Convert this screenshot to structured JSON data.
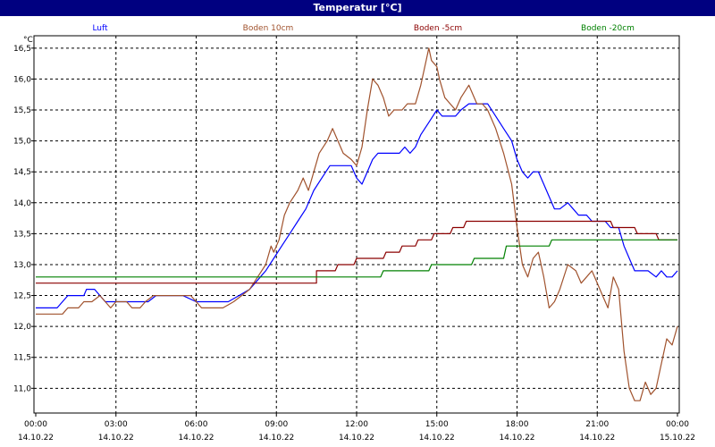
{
  "window": {
    "title": "Temperatur [°C]"
  },
  "chart_data": {
    "type": "line",
    "ylabel": "°C",
    "ylim": [
      10.6,
      16.7
    ],
    "xlim": [
      "14.10.22 00:00",
      "15.10.22 00:00"
    ],
    "grid": true,
    "legend_position": "top",
    "y_ticks": [
      "11,0",
      "11,5",
      "12,0",
      "12,5",
      "13,0",
      "13,5",
      "14,0",
      "14,5",
      "15,0",
      "15,5",
      "16,0",
      "16,5"
    ],
    "y_tick_values": [
      11.0,
      11.5,
      12.0,
      12.5,
      13.0,
      13.5,
      14.0,
      14.5,
      15.0,
      15.5,
      16.0,
      16.5
    ],
    "x_ticks": [
      {
        "time": "00:00",
        "date": "14.10.22"
      },
      {
        "time": "03:00",
        "date": "14.10.22"
      },
      {
        "time": "06:00",
        "date": "14.10.22"
      },
      {
        "time": "09:00",
        "date": "14.10.22"
      },
      {
        "time": "12:00",
        "date": "14.10.22"
      },
      {
        "time": "15:00",
        "date": "14.10.22"
      },
      {
        "time": "18:00",
        "date": "14.10.22"
      },
      {
        "time": "21:00",
        "date": "14.10.22"
      },
      {
        "time": "00:00",
        "date": "15.10.22"
      }
    ],
    "series": [
      {
        "name": "Luft",
        "color": "#0000ff",
        "points": [
          [
            0.0,
            12.3
          ],
          [
            0.8,
            12.3
          ],
          [
            1.0,
            12.4
          ],
          [
            1.2,
            12.5
          ],
          [
            1.8,
            12.5
          ],
          [
            1.9,
            12.6
          ],
          [
            2.2,
            12.6
          ],
          [
            2.4,
            12.5
          ],
          [
            2.6,
            12.4
          ],
          [
            4.2,
            12.4
          ],
          [
            4.5,
            12.5
          ],
          [
            5.5,
            12.5
          ],
          [
            6.0,
            12.4
          ],
          [
            7.2,
            12.4
          ],
          [
            7.6,
            12.5
          ],
          [
            8.0,
            12.6
          ],
          [
            8.4,
            12.8
          ],
          [
            8.6,
            12.9
          ],
          [
            8.9,
            13.1
          ],
          [
            9.2,
            13.3
          ],
          [
            9.5,
            13.5
          ],
          [
            9.8,
            13.7
          ],
          [
            10.1,
            13.9
          ],
          [
            10.4,
            14.2
          ],
          [
            10.7,
            14.4
          ],
          [
            11.0,
            14.6
          ],
          [
            11.8,
            14.6
          ],
          [
            12.0,
            14.4
          ],
          [
            12.2,
            14.3
          ],
          [
            12.4,
            14.5
          ],
          [
            12.6,
            14.7
          ],
          [
            12.8,
            14.8
          ],
          [
            13.6,
            14.8
          ],
          [
            13.8,
            14.9
          ],
          [
            14.0,
            14.8
          ],
          [
            14.2,
            14.9
          ],
          [
            14.4,
            15.1
          ],
          [
            14.7,
            15.3
          ],
          [
            15.0,
            15.5
          ],
          [
            15.2,
            15.4
          ],
          [
            15.7,
            15.4
          ],
          [
            15.9,
            15.5
          ],
          [
            16.2,
            15.6
          ],
          [
            16.9,
            15.6
          ],
          [
            17.2,
            15.4
          ],
          [
            17.5,
            15.2
          ],
          [
            17.8,
            15.0
          ],
          [
            18.0,
            14.7
          ],
          [
            18.2,
            14.5
          ],
          [
            18.4,
            14.4
          ],
          [
            18.6,
            14.5
          ],
          [
            18.8,
            14.5
          ],
          [
            19.0,
            14.3
          ],
          [
            19.2,
            14.1
          ],
          [
            19.4,
            13.9
          ],
          [
            19.6,
            13.9
          ],
          [
            19.9,
            14.0
          ],
          [
            20.1,
            13.9
          ],
          [
            20.3,
            13.8
          ],
          [
            20.6,
            13.8
          ],
          [
            20.8,
            13.7
          ],
          [
            21.3,
            13.7
          ],
          [
            21.5,
            13.6
          ],
          [
            21.8,
            13.6
          ],
          [
            22.0,
            13.3
          ],
          [
            22.2,
            13.1
          ],
          [
            22.4,
            12.9
          ],
          [
            22.9,
            12.9
          ],
          [
            23.2,
            12.8
          ],
          [
            23.4,
            12.9
          ],
          [
            23.6,
            12.8
          ],
          [
            23.8,
            12.8
          ],
          [
            24.0,
            12.9
          ]
        ]
      },
      {
        "name": "Boden 10cm",
        "color": "#a0522d",
        "points": [
          [
            0.0,
            12.2
          ],
          [
            1.0,
            12.2
          ],
          [
            1.2,
            12.3
          ],
          [
            1.6,
            12.3
          ],
          [
            1.8,
            12.4
          ],
          [
            2.1,
            12.4
          ],
          [
            2.4,
            12.5
          ],
          [
            2.6,
            12.4
          ],
          [
            2.8,
            12.3
          ],
          [
            3.0,
            12.4
          ],
          [
            3.4,
            12.4
          ],
          [
            3.6,
            12.3
          ],
          [
            3.9,
            12.3
          ],
          [
            4.1,
            12.4
          ],
          [
            4.4,
            12.5
          ],
          [
            5.8,
            12.5
          ],
          [
            6.0,
            12.4
          ],
          [
            6.2,
            12.3
          ],
          [
            7.0,
            12.3
          ],
          [
            7.4,
            12.4
          ],
          [
            7.7,
            12.5
          ],
          [
            8.0,
            12.6
          ],
          [
            8.3,
            12.8
          ],
          [
            8.6,
            13.0
          ],
          [
            8.8,
            13.3
          ],
          [
            8.9,
            13.2
          ],
          [
            9.1,
            13.4
          ],
          [
            9.3,
            13.8
          ],
          [
            9.5,
            14.0
          ],
          [
            9.8,
            14.2
          ],
          [
            10.0,
            14.4
          ],
          [
            10.2,
            14.2
          ],
          [
            10.4,
            14.5
          ],
          [
            10.6,
            14.8
          ],
          [
            10.9,
            15.0
          ],
          [
            11.1,
            15.2
          ],
          [
            11.3,
            15.0
          ],
          [
            11.5,
            14.8
          ],
          [
            11.8,
            14.7
          ],
          [
            12.0,
            14.6
          ],
          [
            12.2,
            14.9
          ],
          [
            12.4,
            15.5
          ],
          [
            12.6,
            16.0
          ],
          [
            12.8,
            15.9
          ],
          [
            13.0,
            15.7
          ],
          [
            13.2,
            15.4
          ],
          [
            13.4,
            15.5
          ],
          [
            13.7,
            15.5
          ],
          [
            13.9,
            15.6
          ],
          [
            14.2,
            15.6
          ],
          [
            14.4,
            15.9
          ],
          [
            14.6,
            16.3
          ],
          [
            14.7,
            16.5
          ],
          [
            14.8,
            16.3
          ],
          [
            15.0,
            16.2
          ],
          [
            15.1,
            16.0
          ],
          [
            15.3,
            15.7
          ],
          [
            15.5,
            15.6
          ],
          [
            15.7,
            15.5
          ],
          [
            15.9,
            15.7
          ],
          [
            16.2,
            15.9
          ],
          [
            16.5,
            15.6
          ],
          [
            16.7,
            15.6
          ],
          [
            16.9,
            15.5
          ],
          [
            17.2,
            15.2
          ],
          [
            17.5,
            14.8
          ],
          [
            17.8,
            14.3
          ],
          [
            18.0,
            13.6
          ],
          [
            18.2,
            13.0
          ],
          [
            18.4,
            12.8
          ],
          [
            18.6,
            13.1
          ],
          [
            18.8,
            13.2
          ],
          [
            19.0,
            12.8
          ],
          [
            19.2,
            12.3
          ],
          [
            19.4,
            12.4
          ],
          [
            19.6,
            12.6
          ],
          [
            19.9,
            13.0
          ],
          [
            20.2,
            12.9
          ],
          [
            20.4,
            12.7
          ],
          [
            20.6,
            12.8
          ],
          [
            20.8,
            12.9
          ],
          [
            21.0,
            12.7
          ],
          [
            21.2,
            12.5
          ],
          [
            21.4,
            12.3
          ],
          [
            21.6,
            12.8
          ],
          [
            21.8,
            12.6
          ],
          [
            22.0,
            11.6
          ],
          [
            22.2,
            11.0
          ],
          [
            22.4,
            10.8
          ],
          [
            22.6,
            10.8
          ],
          [
            22.8,
            11.1
          ],
          [
            23.0,
            10.9
          ],
          [
            23.2,
            11.0
          ],
          [
            23.4,
            11.4
          ],
          [
            23.6,
            11.8
          ],
          [
            23.8,
            11.7
          ],
          [
            24.0,
            12.0
          ]
        ]
      },
      {
        "name": "Boden -5cm",
        "color": "#8b0000",
        "points": [
          [
            0.0,
            12.7
          ],
          [
            10.5,
            12.7
          ],
          [
            10.5,
            12.9
          ],
          [
            11.2,
            12.9
          ],
          [
            11.3,
            13.0
          ],
          [
            11.9,
            13.0
          ],
          [
            12.0,
            13.1
          ],
          [
            13.0,
            13.1
          ],
          [
            13.1,
            13.2
          ],
          [
            13.6,
            13.2
          ],
          [
            13.7,
            13.3
          ],
          [
            14.2,
            13.3
          ],
          [
            14.3,
            13.4
          ],
          [
            14.8,
            13.4
          ],
          [
            14.9,
            13.5
          ],
          [
            15.5,
            13.5
          ],
          [
            15.6,
            13.6
          ],
          [
            16.0,
            13.6
          ],
          [
            16.1,
            13.7
          ],
          [
            21.5,
            13.7
          ],
          [
            21.6,
            13.6
          ],
          [
            22.4,
            13.6
          ],
          [
            22.5,
            13.5
          ],
          [
            23.2,
            13.5
          ],
          [
            23.3,
            13.4
          ],
          [
            24.0,
            13.4
          ]
        ]
      },
      {
        "name": "Boden -20cm",
        "color": "#008000",
        "points": [
          [
            0.0,
            12.8
          ],
          [
            12.9,
            12.8
          ],
          [
            13.0,
            12.9
          ],
          [
            14.7,
            12.9
          ],
          [
            14.8,
            13.0
          ],
          [
            16.3,
            13.0
          ],
          [
            16.4,
            13.1
          ],
          [
            17.5,
            13.1
          ],
          [
            17.6,
            13.3
          ],
          [
            19.2,
            13.3
          ],
          [
            19.3,
            13.4
          ],
          [
            24.0,
            13.4
          ]
        ]
      }
    ]
  }
}
